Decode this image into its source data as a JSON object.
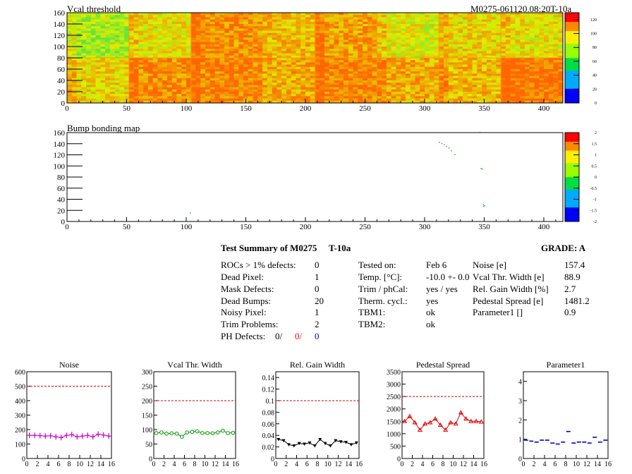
{
  "header": {
    "vcal_title": "Vcal threshold",
    "module_label": "M0275-061120.08:20T-10a",
    "bump_title": "Bump bonding map"
  },
  "heatmap_axes": {
    "x_ticks": [
      "0",
      "50",
      "100",
      "150",
      "200",
      "250",
      "300",
      "350",
      "400"
    ],
    "y_ticks": [
      "0",
      "20",
      "40",
      "60",
      "80",
      "100",
      "120",
      "140",
      "160"
    ],
    "vcal_z_ticks": [
      "0",
      "20",
      "40",
      "60",
      "80",
      "100",
      "120"
    ],
    "bump_z_ticks": [
      "-2",
      "-1.5",
      "-1",
      "-0.5",
      "0",
      "0.5",
      "1",
      "1.5",
      "2"
    ]
  },
  "summary": {
    "title": "Test Summary of M0275",
    "temp_label": "T-10a",
    "grade": "GRADE:  A",
    "left": [
      {
        "label": "ROCs > 1% defects:",
        "value": "0"
      },
      {
        "label": "Dead Pixel:",
        "value": "1"
      },
      {
        "label": "Mask Defects:",
        "value": "0"
      },
      {
        "label": "Dead Bumps:",
        "value": "20"
      },
      {
        "label": "Noisy Pixel:",
        "value": "1"
      },
      {
        "label": "Trim Problems:",
        "value": "2"
      }
    ],
    "ph_label": "PH Defects:",
    "ph_values": [
      "0/",
      "0/",
      "0"
    ],
    "middle": [
      {
        "label": "Tested on:",
        "value": "Feb 6"
      },
      {
        "label": "Temp. [°C]:",
        "value": "-10.0 +- 0.0"
      },
      {
        "label": "Trim / phCal:",
        "value": "yes / yes"
      },
      {
        "label": "Therm. cycl.:",
        "value": "yes"
      },
      {
        "label": "TBM1:",
        "value": "ok"
      },
      {
        "label": "TBM2:",
        "value": "ok"
      }
    ],
    "right": [
      {
        "label": "Noise [e]",
        "value": "157.4"
      },
      {
        "label": "Vcal Thr. Width [e]",
        "value": "88.9"
      },
      {
        "label": "Rel. Gain Width [%]",
        "value": "2.7"
      },
      {
        "label": "Pedestal Spread [e]",
        "value": "1481.2"
      },
      {
        "label": "Parameter1 []",
        "value": "0.9"
      }
    ]
  },
  "colors": {
    "noise": "#cc00cc",
    "vcal": "#009900",
    "gain": "#000000",
    "pedestal": "#dd0000",
    "param": "#0000cc",
    "cut_line": "#cc0000",
    "ph_red": "#ff0000",
    "ph_blue": "#0000cc"
  },
  "chart_data": [
    {
      "type": "heatmap",
      "title": "Vcal threshold",
      "x_range": [
        0,
        416
      ],
      "y_range": [
        0,
        160
      ],
      "z_range": [
        0,
        130
      ],
      "roc_grid": {
        "cols": 8,
        "rows": 2,
        "col_width": 52,
        "row_height": 80
      }
    },
    {
      "type": "scatter",
      "title": "Bump bonding map",
      "x_range": [
        0,
        416
      ],
      "y_range": [
        0,
        160
      ],
      "z_range": [
        -2,
        2
      ],
      "points": [
        [
          103,
          15
        ],
        [
          312,
          142
        ],
        [
          314,
          140
        ],
        [
          316,
          138
        ],
        [
          318,
          135
        ],
        [
          320,
          132
        ],
        [
          322,
          127
        ],
        [
          325,
          120
        ],
        [
          346,
          160
        ],
        [
          347,
          95
        ],
        [
          348,
          94
        ],
        [
          349,
          30
        ],
        [
          350,
          28
        ],
        [
          349,
          27
        ]
      ]
    },
    {
      "type": "line",
      "title": "Noise",
      "x": [
        0.5,
        1.5,
        2.5,
        3.5,
        4.5,
        5.5,
        6.5,
        7.5,
        8.5,
        9.5,
        10.5,
        11.5,
        12.5,
        13.5,
        14.5,
        15.5
      ],
      "values": [
        160,
        160,
        158,
        155,
        157,
        150,
        145,
        160,
        165,
        150,
        155,
        160,
        150,
        168,
        162,
        155
      ],
      "xlim": [
        0,
        16
      ],
      "ylim": [
        0,
        600
      ],
      "cut": 500,
      "x_ticks": [
        "0",
        "2",
        "4",
        "6",
        "8",
        "10",
        "12",
        "14",
        "16"
      ],
      "y_ticks": [
        "0",
        "100",
        "200",
        "300",
        "400",
        "500",
        "600"
      ]
    },
    {
      "type": "line",
      "title": "Vcal Thr. Width",
      "x": [
        0.5,
        1.5,
        2.5,
        3.5,
        4.5,
        5.5,
        6.5,
        7.5,
        8.5,
        9.5,
        10.5,
        11.5,
        12.5,
        13.5,
        14.5,
        15.5
      ],
      "values": [
        88,
        90,
        86,
        87,
        86,
        75,
        90,
        92,
        94,
        88,
        88,
        87,
        90,
        96,
        88,
        89
      ],
      "xlim": [
        0,
        16
      ],
      "ylim": [
        0,
        300
      ],
      "cut": 200,
      "x_ticks": [
        "0",
        "2",
        "4",
        "6",
        "8",
        "10",
        "12",
        "14",
        "16"
      ],
      "y_ticks": [
        "0",
        "50",
        "100",
        "150",
        "200",
        "250",
        "300"
      ]
    },
    {
      "type": "line",
      "title": "Rel. Gain Width",
      "x": [
        0.5,
        1.5,
        2.5,
        3.5,
        4.5,
        5.5,
        6.5,
        7.5,
        8.5,
        9.5,
        10.5,
        11.5,
        12.5,
        13.5,
        14.5,
        15.5
      ],
      "values": [
        0.033,
        0.031,
        0.024,
        0.022,
        0.026,
        0.025,
        0.027,
        0.022,
        0.033,
        0.026,
        0.022,
        0.031,
        0.029,
        0.028,
        0.024,
        0.027
      ],
      "xlim": [
        0,
        16
      ],
      "ylim": [
        0,
        0.15
      ],
      "cut": 0.1,
      "x_ticks": [
        "0",
        "2",
        "4",
        "6",
        "8",
        "10",
        "12",
        "14",
        "16"
      ],
      "y_ticks": [
        "0",
        "0.02",
        "0.04",
        "0.06",
        "0.08",
        "0.1",
        "0.12",
        "0.14"
      ]
    },
    {
      "type": "line",
      "title": "Pedestal Spread",
      "x": [
        0.5,
        1.5,
        2.5,
        3.5,
        4.5,
        5.5,
        6.5,
        7.5,
        8.5,
        9.5,
        10.5,
        11.5,
        12.5,
        13.5,
        14.5,
        15.5
      ],
      "values": [
        1500,
        1700,
        1450,
        1150,
        1400,
        1450,
        1600,
        1350,
        1150,
        1450,
        1400,
        1850,
        1600,
        1500,
        1500,
        1480
      ],
      "xlim": [
        0,
        16
      ],
      "ylim": [
        0,
        3500
      ],
      "cut": 2500,
      "x_ticks": [
        "0",
        "2",
        "4",
        "6",
        "8",
        "10",
        "12",
        "14",
        "16"
      ],
      "y_ticks": [
        "0",
        "500",
        "1000",
        "1500",
        "2000",
        "2500",
        "3000",
        "3500"
      ]
    },
    {
      "type": "scatter",
      "title": "Parameter1",
      "x": [
        0.5,
        1.5,
        2.5,
        3.5,
        4.5,
        5.5,
        6.5,
        7.5,
        8.5,
        9.5,
        10.5,
        11.5,
        12.5,
        13.5,
        14.5,
        15.5
      ],
      "values": [
        0.95,
        0.9,
        0.85,
        0.95,
        0.95,
        0.8,
        0.75,
        0.85,
        1.4,
        0.8,
        0.85,
        0.85,
        0.8,
        1.1,
        0.85,
        0.95
      ],
      "xlim": [
        0,
        16
      ],
      "ylim": [
        0,
        4.5
      ],
      "x_ticks": [
        "0",
        "2",
        "4",
        "6",
        "8",
        "10",
        "12",
        "14",
        "16"
      ],
      "y_ticks": [
        "0",
        "1",
        "2",
        "3",
        "4"
      ]
    }
  ]
}
